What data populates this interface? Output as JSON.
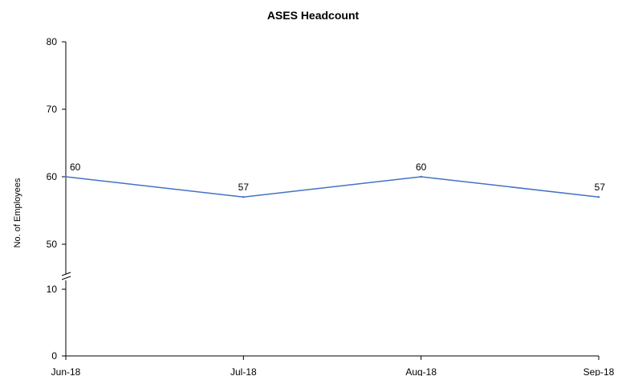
{
  "chart_data": {
    "type": "line",
    "title": "ASES Headcount",
    "xlabel": "",
    "ylabel": "No. of Employees",
    "categories": [
      "Jun-18",
      "Jul-18",
      "Aug-18",
      "Sep-18"
    ],
    "series": [
      {
        "values": [
          60,
          57,
          60,
          57
        ],
        "color": "#4472C4"
      }
    ],
    "data_labels": [
      "60",
      "57",
      "60",
      "57"
    ],
    "y_axis": {
      "broken": true,
      "lower_segment": {
        "ticks": [
          0,
          10
        ],
        "labels": [
          "0",
          "10"
        ]
      },
      "upper_segment": {
        "ticks": [
          50,
          60,
          70,
          80
        ],
        "labels": [
          "50",
          "60",
          "70",
          "80"
        ],
        "ylim": [
          50,
          80
        ]
      }
    },
    "grid": false,
    "legend": "none"
  }
}
